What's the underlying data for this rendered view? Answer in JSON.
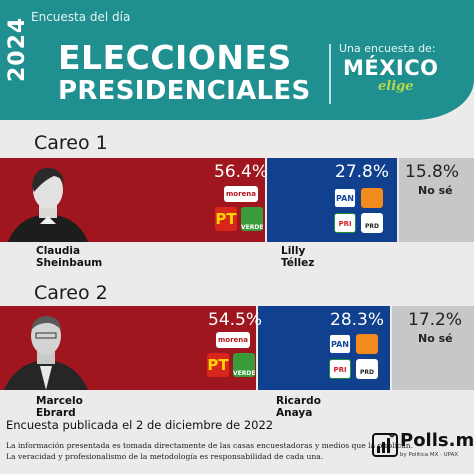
{
  "header": {
    "survey_label": "Encuesta del día",
    "year": "2024",
    "title_line1": "ELECCIONES",
    "title_line2": "PRESIDENCIALES",
    "tagline": "Una encuesta de:",
    "brand_main": "MÉXICO",
    "brand_sub": "elige"
  },
  "chart_data": [
    {
      "type": "bar",
      "stacked": true,
      "orientation": "horizontal",
      "title": "Careo 1",
      "categories": [
        "Claudia Sheinbaum",
        "Lilly Téllez",
        "No sé"
      ],
      "values": [
        56.4,
        27.8,
        15.8
      ],
      "labels": [
        "56.4%",
        "27.8%",
        "15.8%"
      ],
      "colors": [
        "#a0161f",
        "#11408f",
        "#c7c7c7"
      ],
      "candidates": [
        {
          "line1": "Claudia",
          "line2": "Sheinbaum",
          "parties": [
            "morena",
            "PT",
            "VERDE"
          ]
        },
        {
          "line1": "Lilly",
          "line2": "Téllez",
          "parties": [
            "PAN",
            "MC",
            "PRI",
            "PRD"
          ]
        }
      ],
      "none_label": "No sé"
    },
    {
      "type": "bar",
      "stacked": true,
      "orientation": "horizontal",
      "title": "Careo 2",
      "categories": [
        "Marcelo Ebrard",
        "Ricardo Anaya",
        "No sé"
      ],
      "values": [
        54.5,
        28.3,
        17.2
      ],
      "labels": [
        "54.5%",
        "28.3%",
        "17.2%"
      ],
      "colors": [
        "#a0161f",
        "#11408f",
        "#c7c7c7"
      ],
      "candidates": [
        {
          "line1": "Marcelo",
          "line2": "Ebrard",
          "parties": [
            "morena",
            "PT",
            "VERDE"
          ]
        },
        {
          "line1": "Ricardo",
          "line2": "Anaya",
          "parties": [
            "PAN",
            "MC",
            "PRI",
            "PRD"
          ]
        }
      ],
      "none_label": "No sé"
    }
  ],
  "footer": {
    "published": "Encuesta publicada el 2 de diciembre de 2022",
    "disclaimer1": "La información presentada es tomada directamente de las casas encuestadoras y medios que la publican.",
    "disclaimer2": "La veracidad y profesionalismo de la metodología es responsabilidad de cada una.",
    "brand": "Polls.mx",
    "brand_sub": "by Politica MX · UPAX"
  }
}
